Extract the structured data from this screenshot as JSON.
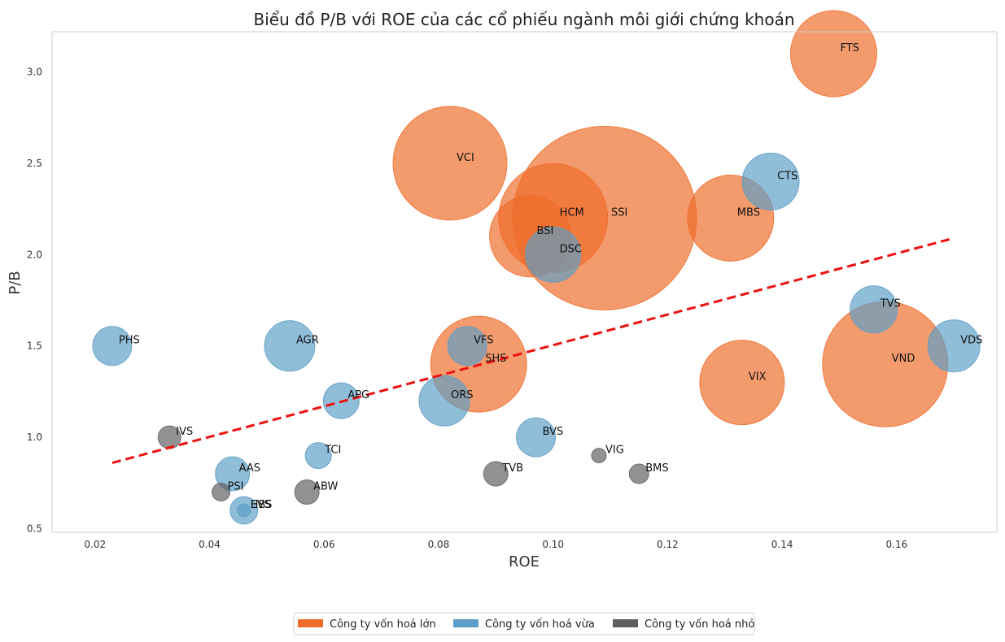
{
  "chart_data": {
    "type": "scatter",
    "title": "Biểu đồ P/B với ROE của các cổ phiếu ngành môi giới chứng khoán",
    "xlabel": "ROE",
    "ylabel": "P/B",
    "xlim": [
      0.0125,
      0.1775
    ],
    "ylim": [
      0.48,
      3.22
    ],
    "xticks": [
      "0.02",
      "0.04",
      "0.06",
      "0.08",
      "0.10",
      "0.12",
      "0.14",
      "0.16"
    ],
    "yticks": [
      "0.5",
      "1.0",
      "1.5",
      "2.0",
      "2.5",
      "3.0"
    ],
    "grid": false,
    "legend_position": "bottom",
    "categories": [
      {
        "key": "large",
        "label": "Công ty vốn hoá lớn",
        "color": "#ef6c2a"
      },
      {
        "key": "mid",
        "label": "Công ty vốn hoá vừa",
        "color": "#5b9ec6"
      },
      {
        "key": "small",
        "label": "Công ty vốn hoá nhỏ",
        "color": "#5f5e63"
      }
    ],
    "trendline": {
      "x": [
        0.023,
        0.17
      ],
      "y": [
        0.86,
        2.09
      ],
      "color": "#ee1111",
      "style": "dashed"
    },
    "points": [
      {
        "ticker": "SSI",
        "roe": 0.109,
        "pb": 2.2,
        "category": "large",
        "size": 113
      },
      {
        "ticker": "VCI",
        "roe": 0.082,
        "pb": 2.5,
        "category": "large",
        "size": 70
      },
      {
        "ticker": "VND",
        "roe": 0.158,
        "pb": 1.4,
        "category": "large",
        "size": 77
      },
      {
        "ticker": "HCM",
        "roe": 0.1,
        "pb": 2.2,
        "category": "large",
        "size": 67
      },
      {
        "ticker": "FTS",
        "roe": 0.149,
        "pb": 3.1,
        "category": "large",
        "size": 53
      },
      {
        "ticker": "SHS",
        "roe": 0.087,
        "pb": 1.4,
        "category": "large",
        "size": 59
      },
      {
        "ticker": "MBS",
        "roe": 0.131,
        "pb": 2.2,
        "category": "large",
        "size": 53
      },
      {
        "ticker": "VIX",
        "roe": 0.133,
        "pb": 1.3,
        "category": "large",
        "size": 52
      },
      {
        "ticker": "BSI",
        "roe": 0.096,
        "pb": 2.1,
        "category": "large",
        "size": 50
      },
      {
        "ticker": "DSC",
        "roe": 0.1,
        "pb": 2.0,
        "category": "mid",
        "size": 34
      },
      {
        "ticker": "CTS",
        "roe": 0.138,
        "pb": 2.4,
        "category": "mid",
        "size": 35
      },
      {
        "ticker": "TVS",
        "roe": 0.156,
        "pb": 1.7,
        "category": "mid",
        "size": 29
      },
      {
        "ticker": "VDS",
        "roe": 0.17,
        "pb": 1.5,
        "category": "mid",
        "size": 32
      },
      {
        "ticker": "ORS",
        "roe": 0.081,
        "pb": 1.2,
        "category": "mid",
        "size": 31
      },
      {
        "ticker": "VFS",
        "roe": 0.085,
        "pb": 1.5,
        "category": "mid",
        "size": 24
      },
      {
        "ticker": "AGR",
        "roe": 0.054,
        "pb": 1.5,
        "category": "mid",
        "size": 31
      },
      {
        "ticker": "PHS",
        "roe": 0.023,
        "pb": 1.5,
        "category": "mid",
        "size": 24
      },
      {
        "ticker": "BVS",
        "roe": 0.097,
        "pb": 1.0,
        "category": "mid",
        "size": 24
      },
      {
        "ticker": "APG",
        "roe": 0.063,
        "pb": 1.2,
        "category": "mid",
        "size": 22
      },
      {
        "ticker": "AAS",
        "roe": 0.044,
        "pb": 0.8,
        "category": "mid",
        "size": 21
      },
      {
        "ticker": "TCI",
        "roe": 0.059,
        "pb": 0.9,
        "category": "mid",
        "size": 16
      },
      {
        "ticker": "HBS",
        "roe": 0.046,
        "pb": 0.6,
        "category": "mid",
        "size": 17
      },
      {
        "ticker": "EVS",
        "roe": 0.046,
        "pb": 0.6,
        "category": "mid",
        "size": 8
      },
      {
        "ticker": "IVS",
        "roe": 0.033,
        "pb": 1.0,
        "category": "small",
        "size": 14
      },
      {
        "ticker": "TVB",
        "roe": 0.09,
        "pb": 0.8,
        "category": "small",
        "size": 15
      },
      {
        "ticker": "ABW",
        "roe": 0.057,
        "pb": 0.7,
        "category": "small",
        "size": 15
      },
      {
        "ticker": "BMS",
        "roe": 0.115,
        "pb": 0.8,
        "category": "small",
        "size": 12
      },
      {
        "ticker": "PSI",
        "roe": 0.042,
        "pb": 0.7,
        "category": "small",
        "size": 11
      },
      {
        "ticker": "VIG",
        "roe": 0.108,
        "pb": 0.9,
        "category": "small",
        "size": 9
      }
    ]
  }
}
